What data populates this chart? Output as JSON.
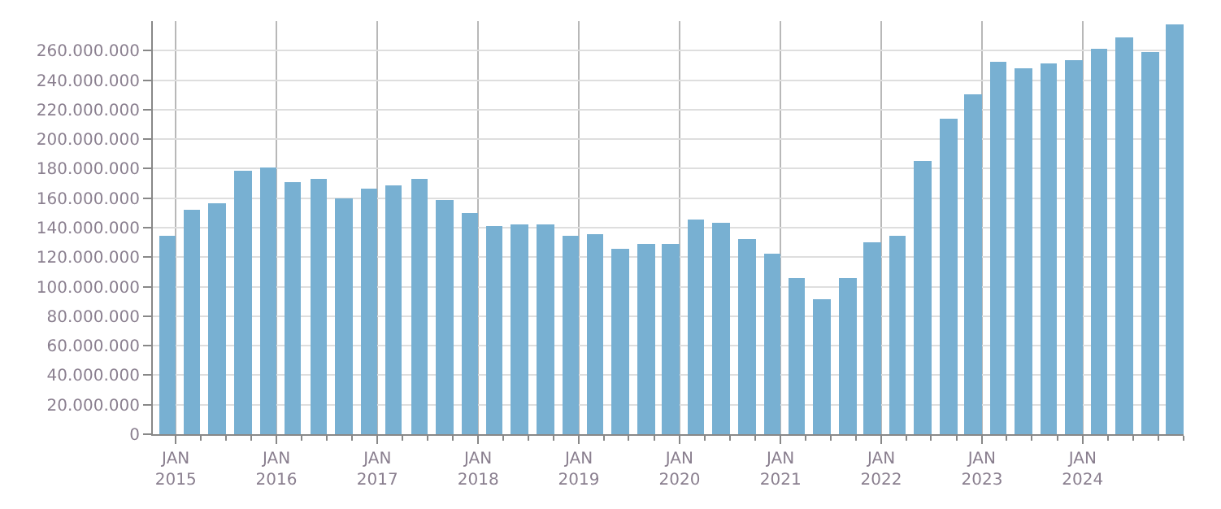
{
  "chart_data": {
    "type": "bar",
    "color": "#78b0d2",
    "grid": true,
    "x": [
      "2014-12",
      "2015-03",
      "2015-06",
      "2015-09",
      "2015-12",
      "2016-03",
      "2016-06",
      "2016-09",
      "2016-12",
      "2017-03",
      "2017-06",
      "2017-09",
      "2017-12",
      "2018-03",
      "2018-06",
      "2018-09",
      "2018-12",
      "2019-03",
      "2019-06",
      "2019-09",
      "2019-12",
      "2020-03",
      "2020-06",
      "2020-09",
      "2020-12",
      "2021-03",
      "2021-06",
      "2021-09",
      "2021-12",
      "2022-03",
      "2022-06",
      "2022-09",
      "2022-12",
      "2023-03",
      "2023-06",
      "2023-09",
      "2023-12",
      "2024-03",
      "2024-06",
      "2024-09",
      "2024-12"
    ],
    "values": [
      134000000,
      152000000,
      157000000,
      179000000,
      181000000,
      171000000,
      173000000,
      160000000,
      166000000,
      169000000,
      173000000,
      159000000,
      150000000,
      141000000,
      142000000,
      142000000,
      135000000,
      136000000,
      126000000,
      129000000,
      129000000,
      145000000,
      143000000,
      132000000,
      122000000,
      106000000,
      92000000,
      106000000,
      130000000,
      135000000,
      185000000,
      214000000,
      230000000,
      252000000,
      248000000,
      251000000,
      254000000,
      261000000,
      269000000,
      259000000,
      278000000
    ],
    "xlim": [
      "2014-10-10",
      "2025-01-01"
    ],
    "xticks": [
      {
        "value": "2015-01",
        "label": "JAN\n2015"
      },
      {
        "value": "2016-01",
        "label": "JAN\n2016"
      },
      {
        "value": "2017-01",
        "label": "JAN\n2017"
      },
      {
        "value": "2018-01",
        "label": "JAN\n2018"
      },
      {
        "value": "2019-01",
        "label": "JAN\n2019"
      },
      {
        "value": "2020-01",
        "label": "JAN\n2020"
      },
      {
        "value": "2021-01",
        "label": "JAN\n2021"
      },
      {
        "value": "2022-01",
        "label": "JAN\n2022"
      },
      {
        "value": "2023-01",
        "label": "JAN\n2023"
      },
      {
        "value": "2024-01",
        "label": "JAN\n2024"
      }
    ],
    "ylim": [
      0,
      280000000
    ],
    "yticks": [
      {
        "value": 0,
        "label": "0"
      },
      {
        "value": 20000000,
        "label": "20.000.000"
      },
      {
        "value": 40000000,
        "label": "40.000.000"
      },
      {
        "value": 60000000,
        "label": "60.000.000"
      },
      {
        "value": 80000000,
        "label": "80.000.000"
      },
      {
        "value": 100000000,
        "label": "100.000.000"
      },
      {
        "value": 120000000,
        "label": "120.000.000"
      },
      {
        "value": 140000000,
        "label": "140.000.000"
      },
      {
        "value": 160000000,
        "label": "160.000.000"
      },
      {
        "value": 180000000,
        "label": "180.000.000"
      },
      {
        "value": 200000000,
        "label": "200.000.000"
      },
      {
        "value": 220000000,
        "label": "220.000.000"
      },
      {
        "value": 240000000,
        "label": "240.000.000"
      },
      {
        "value": 260000000,
        "label": "260.000.000"
      }
    ]
  }
}
